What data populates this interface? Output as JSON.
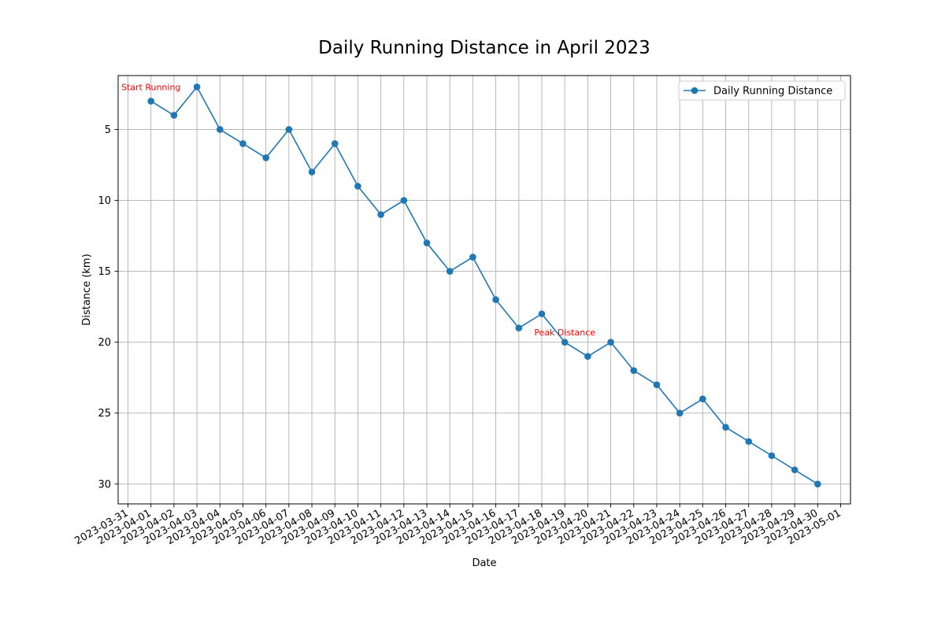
{
  "chart_data": {
    "type": "line",
    "title": "Daily Running Distance in April 2023",
    "xlabel": "Date",
    "ylabel": "Distance (km)",
    "y_axis_inverted": true,
    "ylim": [
      31.4,
      1.2
    ],
    "y_ticks": [
      5,
      10,
      15,
      20,
      25,
      30
    ],
    "x_range": [
      "2023-03-31",
      "2023-05-01"
    ],
    "x_ticks": [
      "2023-03-31",
      "2023-04-01",
      "2023-04-02",
      "2023-04-03",
      "2023-04-04",
      "2023-04-05",
      "2023-04-06",
      "2023-04-07",
      "2023-04-08",
      "2023-04-09",
      "2023-04-10",
      "2023-04-11",
      "2023-04-12",
      "2023-04-13",
      "2023-04-14",
      "2023-04-15",
      "2023-04-16",
      "2023-04-17",
      "2023-04-18",
      "2023-04-19",
      "2023-04-20",
      "2023-04-21",
      "2023-04-22",
      "2023-04-23",
      "2023-04-24",
      "2023-04-25",
      "2023-04-26",
      "2023-04-27",
      "2023-04-28",
      "2023-04-29",
      "2023-04-30",
      "2023-05-01"
    ],
    "grid": true,
    "legend_position": "top-right",
    "series": [
      {
        "name": "Daily Running Distance",
        "color": "#1f77b4",
        "marker": "circle",
        "x": [
          "2023-04-01",
          "2023-04-02",
          "2023-04-03",
          "2023-04-04",
          "2023-04-05",
          "2023-04-06",
          "2023-04-07",
          "2023-04-08",
          "2023-04-09",
          "2023-04-10",
          "2023-04-11",
          "2023-04-12",
          "2023-04-13",
          "2023-04-14",
          "2023-04-15",
          "2023-04-16",
          "2023-04-17",
          "2023-04-18",
          "2023-04-19",
          "2023-04-20",
          "2023-04-21",
          "2023-04-22",
          "2023-04-23",
          "2023-04-24",
          "2023-04-25",
          "2023-04-26",
          "2023-04-27",
          "2023-04-28",
          "2023-04-29",
          "2023-04-30"
        ],
        "values": [
          3,
          4,
          2,
          5,
          6,
          7,
          5,
          8,
          6,
          9,
          11,
          10,
          13,
          15,
          14,
          17,
          19,
          18,
          20,
          21,
          20,
          22,
          23,
          25,
          24,
          26,
          27,
          28,
          29,
          30
        ]
      }
    ],
    "annotations": [
      {
        "text": "Start Running",
        "x": "2023-04-01",
        "y": 2.0,
        "color": "#ff0000"
      },
      {
        "text": "Peak Distance",
        "x": "2023-04-19",
        "y": 19.3,
        "color": "#ff0000"
      }
    ]
  }
}
